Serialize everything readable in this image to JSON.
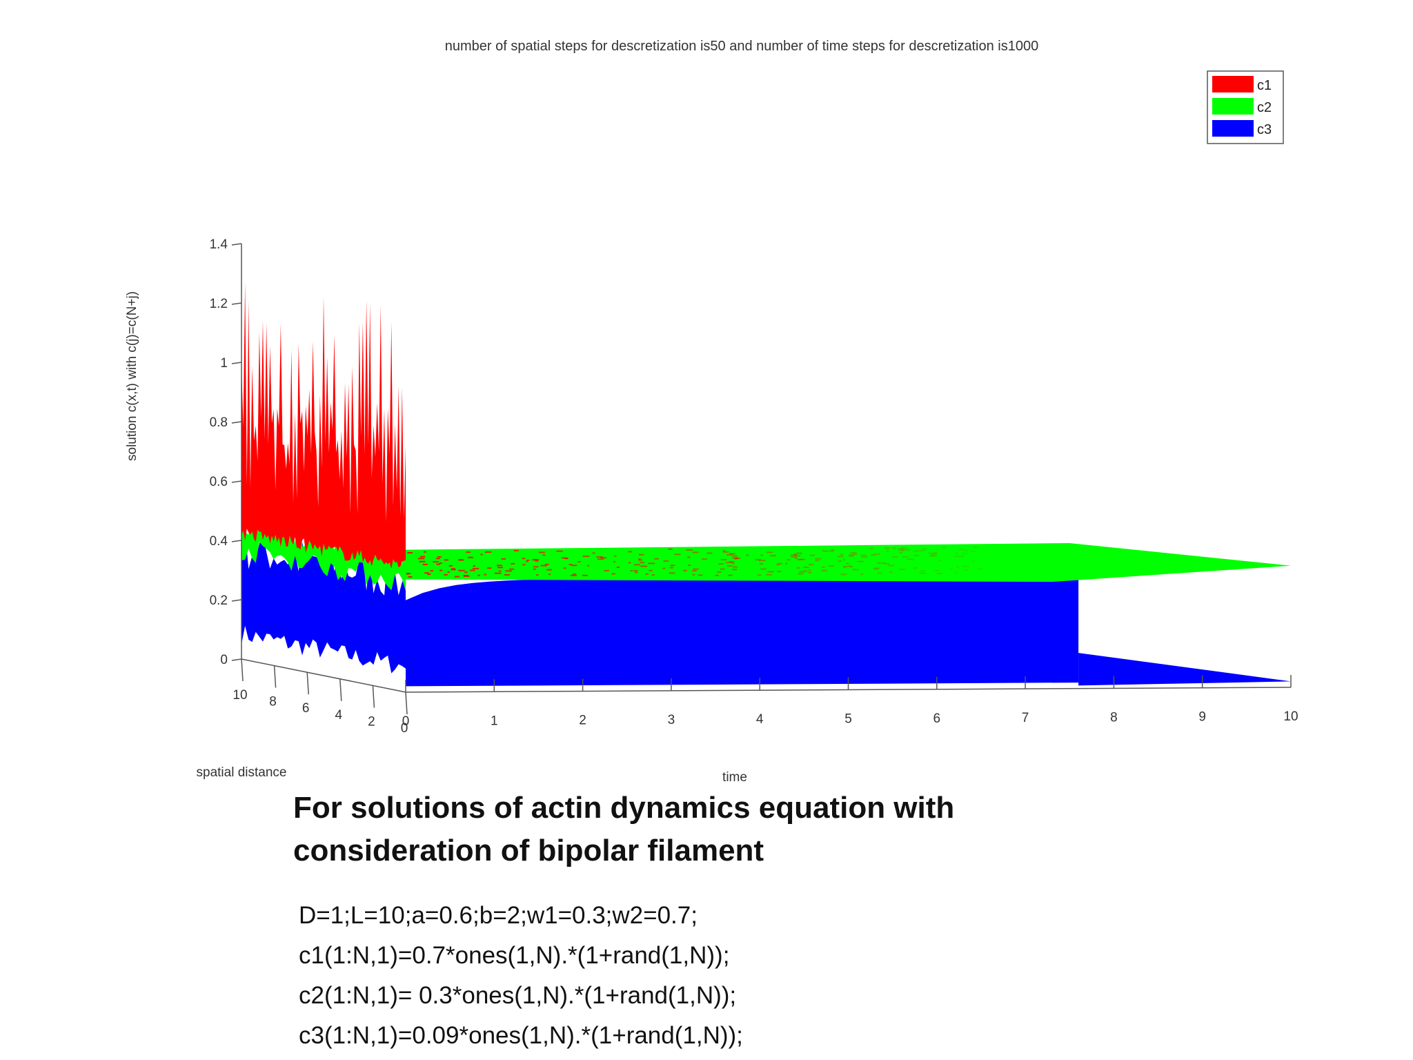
{
  "chart_data": {
    "type": "area",
    "title": "number of spatial steps for descretization is50  and number of time steps for descretization is1000",
    "xlabel": "time",
    "ylabel": "spatial distance",
    "zlabel": "solution c(x,t) with c(j)=c(N+j)",
    "xlim": [
      0,
      10
    ],
    "ylim": [
      0,
      10
    ],
    "zlim": [
      0,
      1.4
    ],
    "x_ticks": [
      "0",
      "1",
      "2",
      "3",
      "4",
      "5",
      "6",
      "7",
      "8",
      "9",
      "10"
    ],
    "y_ticks": [
      "10",
      "8",
      "6",
      "4",
      "2",
      "0"
    ],
    "z_ticks": [
      "0",
      "0.2",
      "0.4",
      "0.6",
      "0.8",
      "1",
      "1.2",
      "1.4"
    ],
    "legend_placement": "top-right",
    "grid": false,
    "series": [
      {
        "name": "c1",
        "color": "#ff0000",
        "initial_range": [
          0.35,
          1.3
        ],
        "steady_state": 0.45
      },
      {
        "name": "c2",
        "color": "#00ff00",
        "initial_range": [
          0.25,
          0.55
        ],
        "steady_state": 0.41
      },
      {
        "name": "c3",
        "color": "#0000ff",
        "initial_range": [
          0.05,
          0.45
        ],
        "steady_state": 0.38
      }
    ]
  },
  "caption": {
    "line1": "For solutions of actin dynamics equation with",
    "line2": "consideration of  bipolar filament"
  },
  "params": [
    "D=1;L=10;a=0.6;b=2;w1=0.3;w2=0.7;",
    "c1(1:N,1)=0.7*ones(1,N).*(1+rand(1,N));",
    "c2(1:N,1)= 0.3*ones(1,N).*(1+rand(1,N));",
    "c3(1:N,1)=0.09*ones(1,N).*(1+rand(1,N));"
  ]
}
